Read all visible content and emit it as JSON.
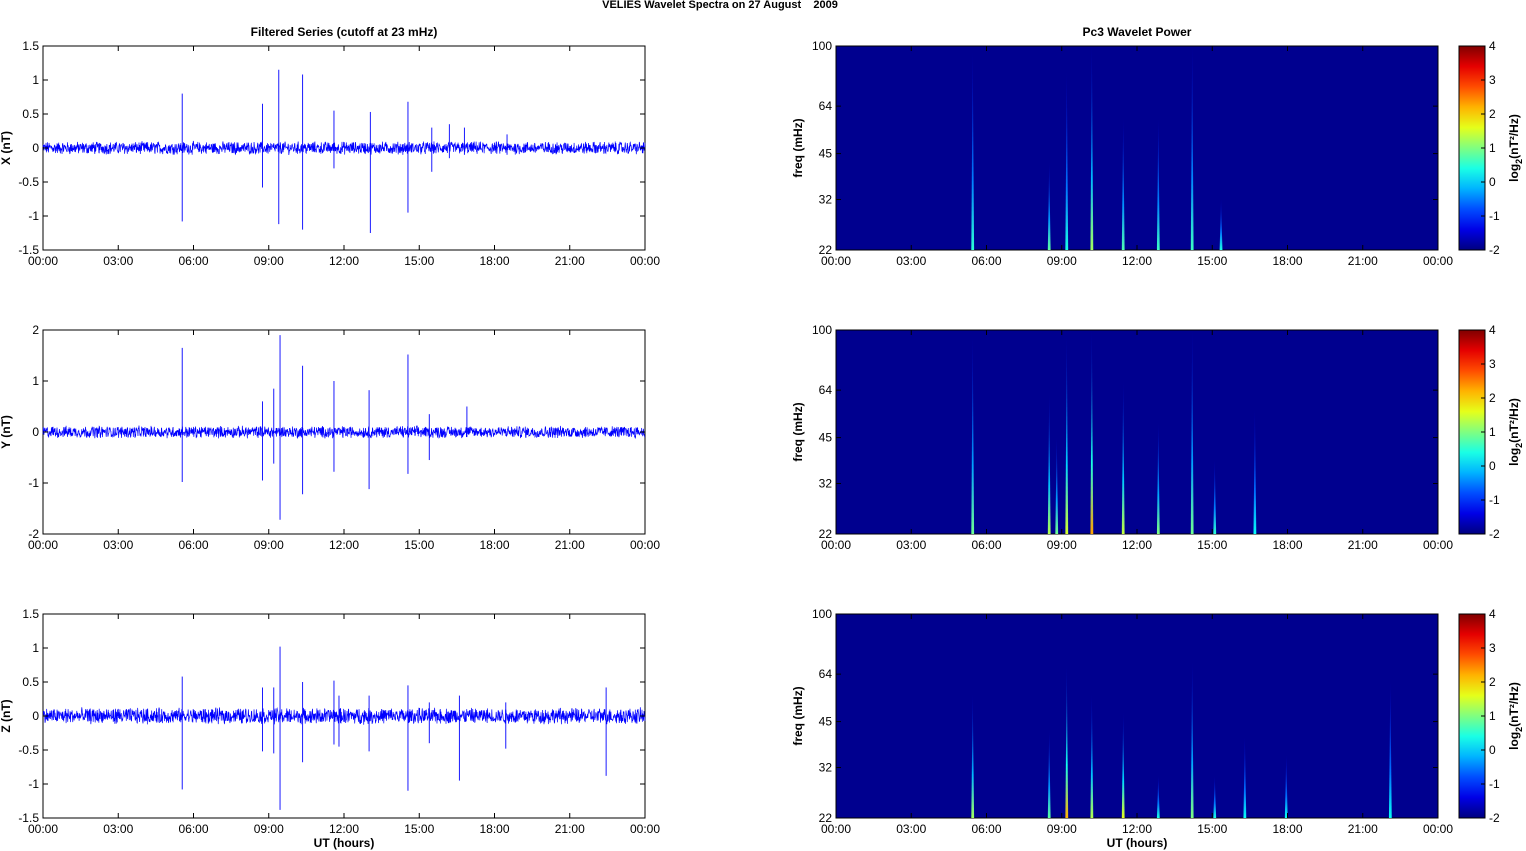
{
  "figure": {
    "title": "VELIES Wavelet Spectra on 27 August    2009",
    "left_title": "Filtered Series (cutoff at 23 mHz)",
    "right_title": "Pc3 Wavelet Power",
    "x_label": "UT (hours)"
  },
  "colors": {
    "series": "#0000ff",
    "spec_background": "#00008f",
    "colormap": [
      "#00008f",
      "#0000ff",
      "#00ffff",
      "#ffff00",
      "#ff0000",
      "#800000"
    ]
  },
  "chart_data": [
    {
      "type": "line",
      "name": "X component",
      "ylabel": "X (nT)",
      "xlim": [
        0,
        24
      ],
      "ylim": [
        -1.5,
        1.5
      ],
      "xticks": [
        "00:00",
        "03:00",
        "06:00",
        "09:00",
        "12:00",
        "15:00",
        "18:00",
        "21:00",
        "00:00"
      ],
      "yticks": [
        "-1.5",
        "-1",
        "-0.5",
        "0",
        "0.5",
        "1",
        "1.5"
      ],
      "noise_amplitude": 0.08,
      "spikes": [
        [
          5.55,
          0.8,
          -1.08
        ],
        [
          8.75,
          0.65,
          -0.58
        ],
        [
          9.4,
          1.15,
          -1.12
        ],
        [
          10.35,
          1.08,
          -1.2
        ],
        [
          11.6,
          0.55,
          -0.3
        ],
        [
          13.05,
          0.53,
          -1.25
        ],
        [
          14.55,
          0.68,
          -0.95
        ],
        [
          15.5,
          0.3,
          -0.35
        ],
        [
          16.2,
          0.35,
          -0.15
        ],
        [
          16.8,
          0.3,
          -0.1
        ],
        [
          18.5,
          0.2,
          -0.1
        ]
      ]
    },
    {
      "type": "line",
      "name": "Y component",
      "ylabel": "Y (nT)",
      "xlim": [
        0,
        24
      ],
      "ylim": [
        -2,
        2
      ],
      "xticks": [
        "00:00",
        "03:00",
        "06:00",
        "09:00",
        "12:00",
        "15:00",
        "18:00",
        "21:00",
        "00:00"
      ],
      "yticks": [
        "-2",
        "-1",
        "0",
        "1",
        "2"
      ],
      "noise_amplitude": 0.1,
      "spikes": [
        [
          5.55,
          1.65,
          -0.98
        ],
        [
          8.75,
          0.6,
          -0.95
        ],
        [
          9.2,
          0.85,
          -0.62
        ],
        [
          9.45,
          1.9,
          -1.72
        ],
        [
          10.35,
          1.3,
          -1.22
        ],
        [
          11.6,
          1.0,
          -0.78
        ],
        [
          13.0,
          0.82,
          -1.12
        ],
        [
          14.55,
          1.52,
          -0.82
        ],
        [
          15.4,
          0.35,
          -0.55
        ],
        [
          16.9,
          0.5,
          -0.1
        ]
      ]
    },
    {
      "type": "line",
      "name": "Z component",
      "ylabel": "Z (nT)",
      "xlim": [
        0,
        24
      ],
      "ylim": [
        -1.5,
        1.5
      ],
      "xticks": [
        "00:00",
        "03:00",
        "06:00",
        "09:00",
        "12:00",
        "15:00",
        "18:00",
        "21:00",
        "00:00"
      ],
      "yticks": [
        "-1.5",
        "-1",
        "-0.5",
        "0",
        "0.5",
        "1",
        "1.5"
      ],
      "noise_amplitude": 0.1,
      "spikes": [
        [
          5.55,
          0.58,
          -1.08
        ],
        [
          8.75,
          0.42,
          -0.52
        ],
        [
          9.2,
          0.42,
          -0.55
        ],
        [
          9.45,
          1.02,
          -1.38
        ],
        [
          10.35,
          0.5,
          -0.68
        ],
        [
          11.6,
          0.52,
          -0.42
        ],
        [
          11.8,
          0.3,
          -0.45
        ],
        [
          13.0,
          0.3,
          -0.52
        ],
        [
          14.55,
          0.45,
          -1.1
        ],
        [
          15.4,
          0.2,
          -0.4
        ],
        [
          16.6,
          0.3,
          -0.95
        ],
        [
          18.45,
          0.2,
          -0.48
        ],
        [
          22.45,
          0.42,
          -0.88
        ]
      ]
    },
    {
      "type": "heatmap",
      "name": "X wavelet power",
      "ylabel": "freq (mHz)",
      "colorbar_label": "log2(nT²/Hz)",
      "xlim": [
        0,
        24
      ],
      "ylim": [
        22,
        100
      ],
      "y_scale": "log",
      "clim": [
        -2,
        4
      ],
      "xticks": [
        "00:00",
        "03:00",
        "06:00",
        "09:00",
        "12:00",
        "15:00",
        "18:00",
        "21:00",
        "00:00"
      ],
      "yticks": [
        "22",
        "32",
        "45",
        "64",
        "100"
      ],
      "cticks": [
        "-2",
        "-1",
        "0",
        "1",
        "2",
        "3",
        "4"
      ],
      "streaks": [
        [
          5.45,
          95,
          0.5
        ],
        [
          8.5,
          42,
          0.8
        ],
        [
          9.2,
          82,
          0.4
        ],
        [
          10.2,
          100,
          1.2
        ],
        [
          11.45,
          58,
          0.7
        ],
        [
          12.85,
          58,
          0.6
        ],
        [
          14.2,
          100,
          0.6
        ],
        [
          15.35,
          32,
          0.4
        ]
      ]
    },
    {
      "type": "heatmap",
      "name": "Y wavelet power",
      "ylabel": "freq (mHz)",
      "colorbar_label": "log2(nT²/Hz)",
      "xlim": [
        0,
        24
      ],
      "ylim": [
        22,
        100
      ],
      "y_scale": "log",
      "clim": [
        -2,
        4
      ],
      "xticks": [
        "00:00",
        "03:00",
        "06:00",
        "09:00",
        "12:00",
        "15:00",
        "18:00",
        "21:00",
        "00:00"
      ],
      "yticks": [
        "22",
        "32",
        "45",
        "64",
        "100"
      ],
      "cticks": [
        "-2",
        "-1",
        "0",
        "1",
        "2",
        "3",
        "4"
      ],
      "streaks": [
        [
          5.45,
          95,
          0.9
        ],
        [
          8.5,
          62,
          1.3
        ],
        [
          8.8,
          45,
          0.9
        ],
        [
          9.2,
          95,
          1.5
        ],
        [
          10.2,
          100,
          2.3
        ],
        [
          11.45,
          68,
          1.4
        ],
        [
          12.85,
          50,
          1.0
        ],
        [
          14.2,
          100,
          0.9
        ],
        [
          15.1,
          38,
          0.5
        ],
        [
          16.7,
          55,
          0.3
        ]
      ]
    },
    {
      "type": "heatmap",
      "name": "Z wavelet power",
      "ylabel": "freq (mHz)",
      "colorbar_label": "log2(nT²/Hz)",
      "xlim": [
        0,
        24
      ],
      "ylim": [
        22,
        100
      ],
      "y_scale": "log",
      "clim": [
        -2,
        4
      ],
      "xticks": [
        "00:00",
        "03:00",
        "06:00",
        "09:00",
        "12:00",
        "15:00",
        "18:00",
        "21:00",
        "00:00"
      ],
      "yticks": [
        "22",
        "32",
        "45",
        "64",
        "100"
      ],
      "cticks": [
        "-2",
        "-1",
        "0",
        "1",
        "2",
        "3",
        "4"
      ],
      "streaks": [
        [
          5.45,
          55,
          1.2
        ],
        [
          8.5,
          42,
          0.8
        ],
        [
          9.2,
          68,
          2.2
        ],
        [
          10.2,
          55,
          1.3
        ],
        [
          11.45,
          48,
          1.6
        ],
        [
          12.85,
          30,
          0.4
        ],
        [
          14.2,
          70,
          1.0
        ],
        [
          15.1,
          30,
          0.4
        ],
        [
          16.3,
          40,
          0.3
        ],
        [
          17.95,
          35,
          0.3
        ],
        [
          22.1,
          60,
          0.3
        ]
      ]
    }
  ]
}
